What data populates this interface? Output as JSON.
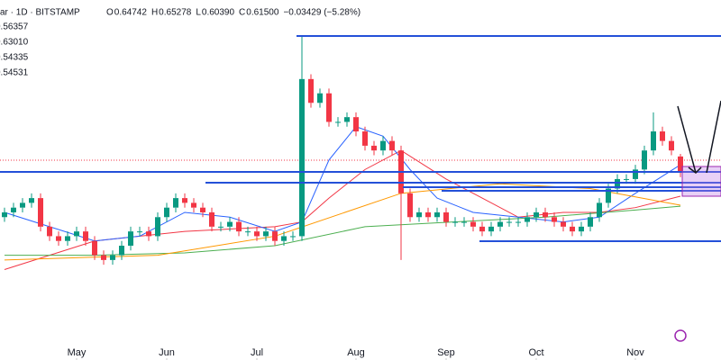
{
  "chart_data": {
    "type": "candlestick",
    "symbol": "ar · 1D · BITSTAMP",
    "ohlc": [
      {
        "label": "O",
        "value": "0.64742"
      },
      {
        "label": "H",
        "value": "0.65278"
      },
      {
        "label": "L",
        "value": "0.60390"
      },
      {
        "label": "C",
        "value": "0.61500"
      }
    ],
    "change": "−0.03429 (−5.28%)",
    "up_color": "#089981",
    "down_color": "#f23645",
    "xlim": [
      -0.5,
      79.5
    ],
    "ylim": [
      0.22,
      0.976
    ],
    "xticks": [
      {
        "value": 8,
        "label": "May"
      },
      {
        "value": 18,
        "label": "Jun"
      },
      {
        "value": 28,
        "label": "Jul"
      },
      {
        "value": 39,
        "label": "Aug"
      },
      {
        "value": 49,
        "label": "Sep"
      },
      {
        "value": 59,
        "label": "Oct"
      },
      {
        "value": 70,
        "label": "Nov"
      }
    ],
    "x": [
      0,
      1,
      2,
      3,
      4,
      5,
      6,
      7,
      8,
      9,
      10,
      11,
      12,
      13,
      14,
      15,
      16,
      17,
      18,
      19,
      20,
      21,
      22,
      23,
      24,
      25,
      26,
      27,
      28,
      29,
      30,
      31,
      32,
      33,
      34,
      35,
      36,
      37,
      38,
      39,
      40,
      41,
      42,
      43,
      44,
      45,
      46,
      47,
      48,
      49,
      50,
      51,
      52,
      53,
      54,
      55,
      56,
      57,
      58,
      59,
      60,
      61,
      62,
      63,
      64,
      65,
      66,
      67,
      68,
      69,
      70,
      71,
      72,
      73,
      74,
      75
    ],
    "open": [
      0.52,
      0.53,
      0.54,
      0.55,
      0.56,
      0.5,
      0.48,
      0.47,
      0.48,
      0.49,
      0.47,
      0.44,
      0.43,
      0.44,
      0.46,
      0.49,
      0.49,
      0.48,
      0.52,
      0.54,
      0.56,
      0.55,
      0.54,
      0.53,
      0.5,
      0.5,
      0.51,
      0.49,
      0.49,
      0.48,
      0.49,
      0.47,
      0.48,
      0.48,
      0.81,
      0.76,
      0.78,
      0.72,
      0.72,
      0.73,
      0.7,
      0.67,
      0.66,
      0.68,
      0.66,
      0.57,
      0.52,
      0.53,
      0.52,
      0.53,
      0.51,
      0.51,
      0.51,
      0.5,
      0.49,
      0.5,
      0.51,
      0.51,
      0.51,
      0.52,
      0.53,
      0.52,
      0.51,
      0.5,
      0.49,
      0.5,
      0.52,
      0.55,
      0.58,
      0.6,
      0.6,
      0.62,
      0.66,
      0.7,
      0.68,
      0.64742
    ],
    "high": [
      0.54,
      0.55,
      0.56,
      0.57,
      0.57,
      0.51,
      0.49,
      0.49,
      0.5,
      0.5,
      0.48,
      0.45,
      0.45,
      0.47,
      0.5,
      0.5,
      0.5,
      0.53,
      0.55,
      0.57,
      0.57,
      0.56,
      0.55,
      0.54,
      0.51,
      0.52,
      0.52,
      0.5,
      0.5,
      0.5,
      0.5,
      0.49,
      0.49,
      0.9,
      0.82,
      0.79,
      0.79,
      0.73,
      0.74,
      0.74,
      0.71,
      0.68,
      0.69,
      0.69,
      0.67,
      0.58,
      0.54,
      0.54,
      0.54,
      0.54,
      0.52,
      0.52,
      0.52,
      0.51,
      0.51,
      0.52,
      0.52,
      0.52,
      0.53,
      0.54,
      0.54,
      0.53,
      0.52,
      0.51,
      0.51,
      0.53,
      0.56,
      0.59,
      0.61,
      0.61,
      0.63,
      0.67,
      0.74,
      0.71,
      0.69,
      0.65278
    ],
    "low": [
      0.51,
      0.52,
      0.53,
      0.54,
      0.49,
      0.47,
      0.46,
      0.46,
      0.47,
      0.46,
      0.43,
      0.42,
      0.42,
      0.43,
      0.45,
      0.48,
      0.47,
      0.47,
      0.51,
      0.53,
      0.54,
      0.53,
      0.52,
      0.49,
      0.49,
      0.49,
      0.48,
      0.48,
      0.47,
      0.47,
      0.46,
      0.46,
      0.47,
      0.47,
      0.75,
      0.75,
      0.71,
      0.71,
      0.71,
      0.69,
      0.66,
      0.65,
      0.65,
      0.65,
      0.43,
      0.51,
      0.51,
      0.51,
      0.51,
      0.5,
      0.5,
      0.5,
      0.49,
      0.48,
      0.48,
      0.49,
      0.5,
      0.5,
      0.5,
      0.51,
      0.51,
      0.5,
      0.49,
      0.48,
      0.48,
      0.49,
      0.51,
      0.54,
      0.57,
      0.59,
      0.59,
      0.61,
      0.65,
      0.67,
      0.65,
      0.6039
    ],
    "close": [
      0.53,
      0.54,
      0.55,
      0.56,
      0.5,
      0.48,
      0.47,
      0.48,
      0.49,
      0.47,
      0.44,
      0.43,
      0.44,
      0.46,
      0.49,
      0.49,
      0.48,
      0.52,
      0.54,
      0.56,
      0.55,
      0.54,
      0.53,
      0.5,
      0.5,
      0.51,
      0.49,
      0.49,
      0.48,
      0.49,
      0.47,
      0.48,
      0.48,
      0.81,
      0.76,
      0.78,
      0.72,
      0.72,
      0.73,
      0.7,
      0.67,
      0.66,
      0.68,
      0.66,
      0.57,
      0.52,
      0.53,
      0.52,
      0.53,
      0.51,
      0.51,
      0.51,
      0.5,
      0.49,
      0.5,
      0.51,
      0.51,
      0.51,
      0.52,
      0.53,
      0.52,
      0.51,
      0.5,
      0.49,
      0.5,
      0.52,
      0.55,
      0.58,
      0.6,
      0.6,
      0.62,
      0.66,
      0.7,
      0.68,
      0.66,
      0.615
    ],
    "series": [
      {
        "label": "0.56357",
        "color": "#f23645",
        "x": [
          0,
          5,
          10,
          20,
          30,
          33,
          36,
          40,
          44,
          49,
          53,
          57,
          62,
          66,
          70,
          75
        ],
        "values": [
          0.41,
          0.44,
          0.47,
          0.49,
          0.5,
          0.51,
          0.56,
          0.62,
          0.66,
          0.6,
          0.56,
          0.52,
          0.53,
          0.53,
          0.54,
          0.564
        ]
      },
      {
        "label": "0.63010",
        "color": "#2962ff",
        "x": [
          0,
          5,
          10,
          15,
          20,
          25,
          30,
          33,
          36,
          39,
          42,
          45,
          48,
          52,
          57,
          62,
          66,
          70,
          75
        ],
        "values": [
          0.53,
          0.5,
          0.47,
          0.48,
          0.53,
          0.52,
          0.49,
          0.51,
          0.64,
          0.71,
          0.69,
          0.62,
          0.56,
          0.53,
          0.52,
          0.51,
          0.52,
          0.57,
          0.63
        ]
      },
      {
        "label": "0.54335",
        "color": "#4caf50",
        "x": [
          0,
          10,
          20,
          30,
          40,
          50,
          60,
          70,
          75
        ],
        "values": [
          0.44,
          0.44,
          0.445,
          0.46,
          0.5,
          0.51,
          0.52,
          0.535,
          0.543
        ]
      },
      {
        "label": "0.54531",
        "color": "#ff9800",
        "x": [
          0,
          17,
          30,
          44,
          55,
          65,
          75
        ],
        "values": [
          0.43,
          0.44,
          0.48,
          0.57,
          0.59,
          0.58,
          0.545
        ]
      }
    ]
  }
}
